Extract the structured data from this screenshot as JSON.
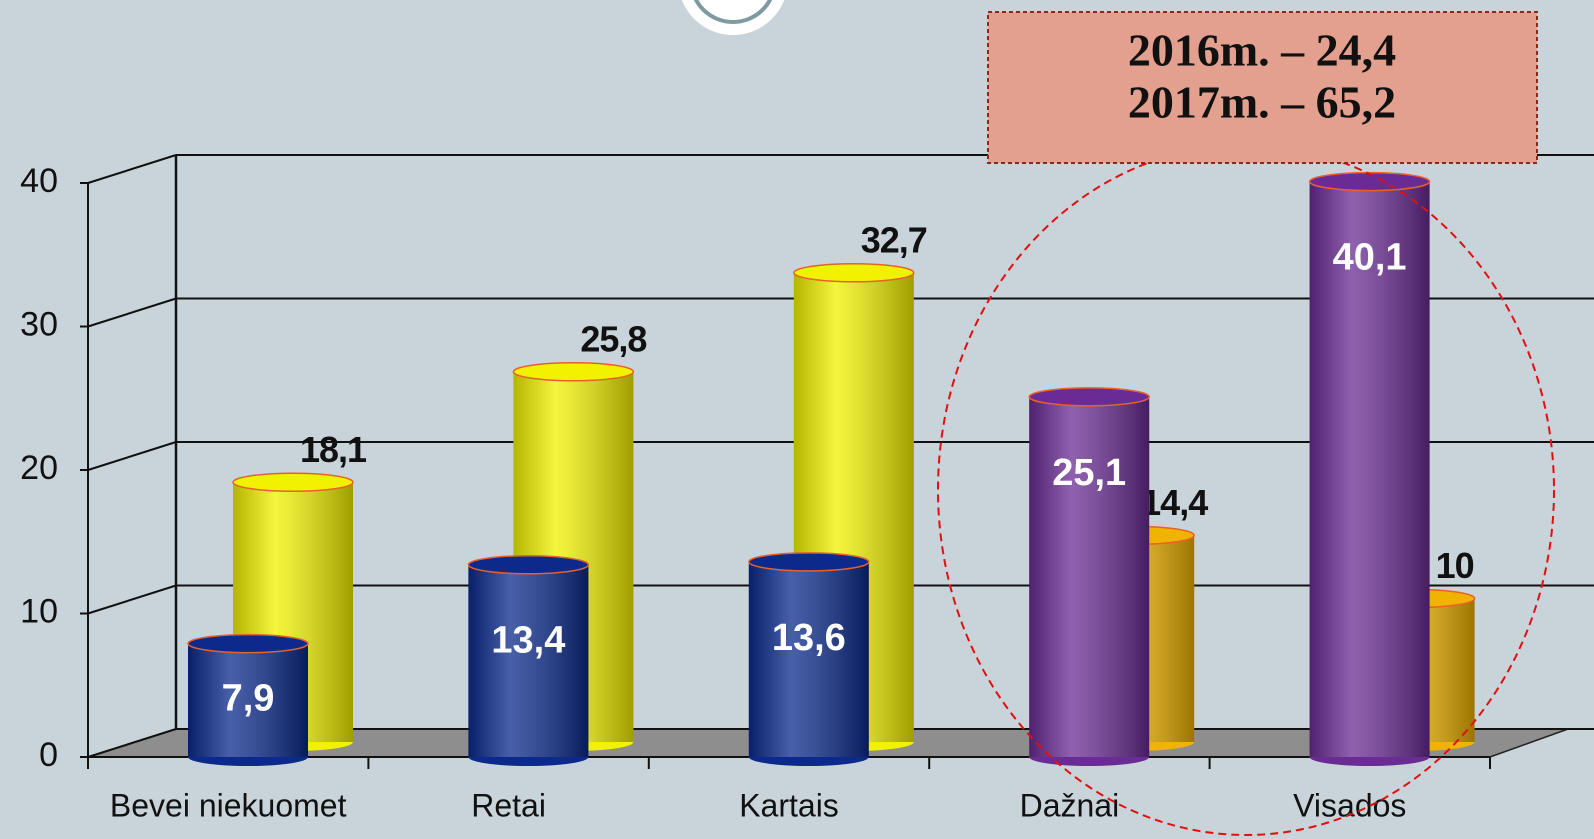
{
  "chart_data": {
    "type": "bar3d",
    "categories": [
      "Bevei niekuomet",
      "Retai",
      "Kartais",
      "Dažnai",
      "Visados"
    ],
    "series": [
      {
        "colors": [
          "#f2f200",
          "#f2f200",
          "#f2f200",
          "#f0b400",
          "#f0b400"
        ],
        "values": [
          18.1,
          25.8,
          32.7,
          14.4,
          10
        ],
        "value_labels": [
          "18,1",
          "25,8",
          "32,7",
          "14,4",
          "10"
        ],
        "position": "back"
      },
      {
        "colors": [
          "#0b2a8c",
          "#0b2a8c",
          "#0b2a8c",
          "#6a2c94",
          "#6a2c94"
        ],
        "values": [
          7.9,
          13.4,
          13.6,
          25.1,
          40.1
        ],
        "value_labels": [
          "7,9",
          "13,4",
          "13,6",
          "25,1",
          "40,1"
        ],
        "position": "front"
      }
    ],
    "ylim": [
      0,
      40
    ],
    "yticks": [
      0,
      10,
      20,
      30,
      40
    ],
    "grid": true,
    "annotation": [
      "2016m. – 24,4",
      "2017m. – 65,2"
    ]
  }
}
